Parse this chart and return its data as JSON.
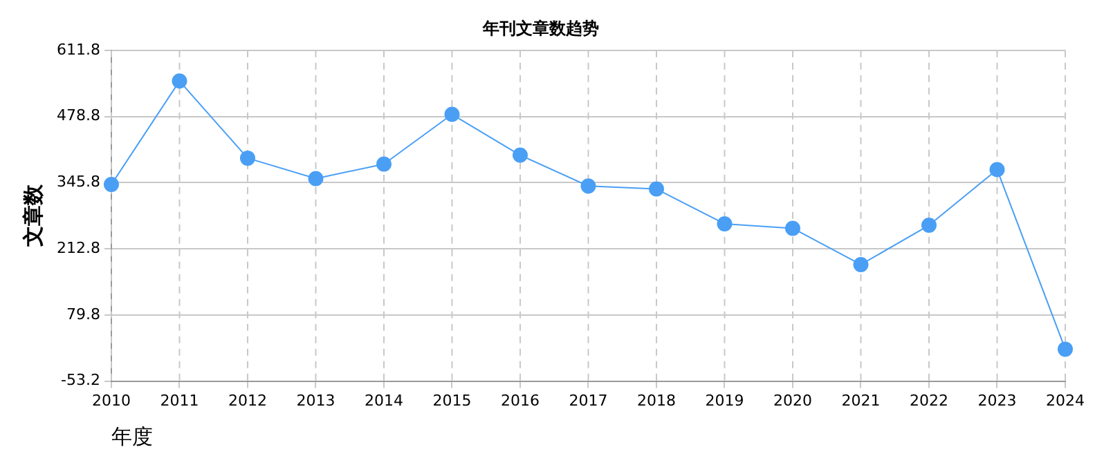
{
  "chart_data": {
    "type": "line",
    "title": "年刊文章数趋势",
    "xlabel": "年度",
    "ylabel": "文章数",
    "categories": [
      "2010",
      "2011",
      "2012",
      "2013",
      "2014",
      "2015",
      "2016",
      "2017",
      "2018",
      "2019",
      "2020",
      "2021",
      "2022",
      "2023",
      "2024"
    ],
    "series": [
      {
        "color": "#4a9ff5",
        "values": [
          342,
          550,
          395,
          354,
          383,
          483,
          401,
          339,
          333,
          263,
          254,
          181,
          260,
          372,
          11
        ]
      }
    ],
    "ylim": [
      -53.2,
      611.8
    ],
    "yticks": [
      -53.2,
      79.8,
      212.8,
      345.8,
      478.8,
      611.8
    ],
    "grid": true,
    "legend": false,
    "marker": "circle",
    "line_style": "solid"
  }
}
